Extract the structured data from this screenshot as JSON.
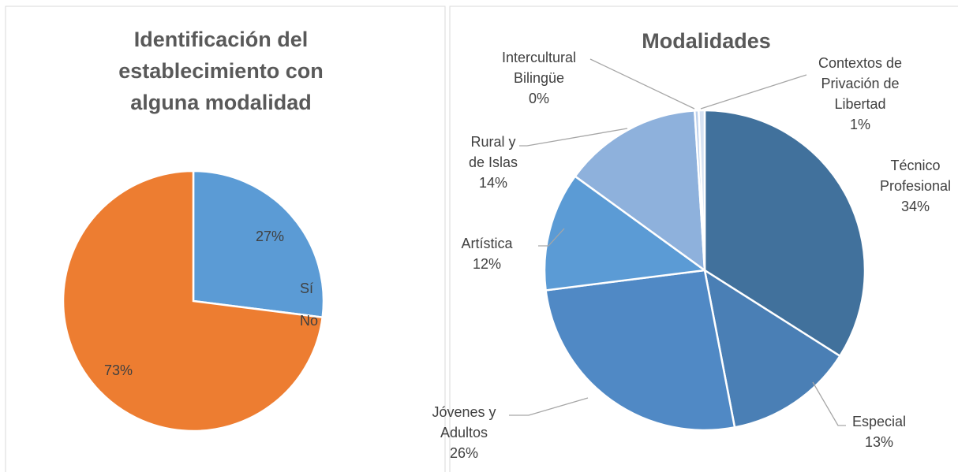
{
  "chart_data": [
    {
      "type": "pie",
      "title": "Identificación del establecimiento con alguna modalidad",
      "categories": [
        "Sí",
        "No"
      ],
      "values": [
        27,
        73
      ],
      "value_labels": [
        "27%",
        "73%"
      ],
      "colors": [
        "#5b9bd5",
        "#ed7d31"
      ],
      "legend": "right"
    },
    {
      "type": "pie",
      "title": "Modalidades",
      "categories": [
        "Técnico Profesional",
        "Especial",
        "Jóvenes y Adultos",
        "Artística",
        "Rural y de Islas",
        "Intercultural Bilingüe",
        "Contextos de Privación de Libertad"
      ],
      "values": [
        34,
        13,
        26,
        12,
        14,
        0.4,
        0.6
      ],
      "value_labels": [
        "34%",
        "13%",
        "26%",
        "12%",
        "14%",
        "0%",
        "1%"
      ],
      "colors": [
        "#41719c",
        "#4a7fb5",
        "#5089c5",
        "#5b9bd5",
        "#8eb1dc",
        "#bcd0ec",
        "#d6e2f3"
      ]
    }
  ]
}
